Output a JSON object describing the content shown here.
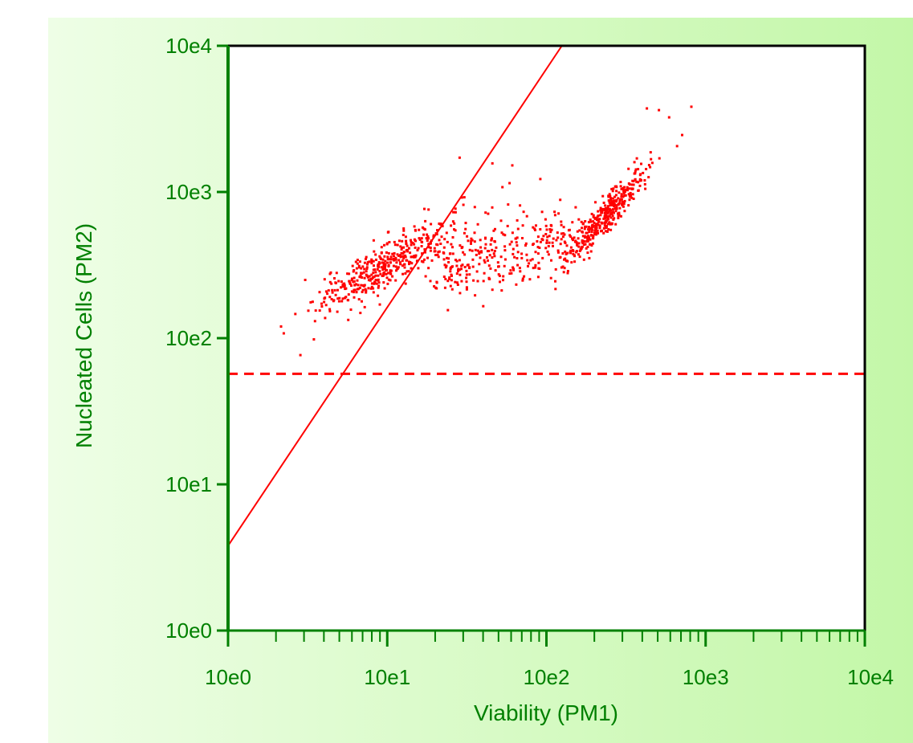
{
  "chart_data": {
    "type": "scatter",
    "title": "",
    "xlabel": "Viability (PM1)",
    "ylabel": "Nucleated Cells (PM2)",
    "x_scale": "log",
    "y_scale": "log",
    "xlim": [
      1,
      10000
    ],
    "ylim": [
      1,
      10000
    ],
    "x_ticks": [
      {
        "value": 1,
        "label": "10e0"
      },
      {
        "value": 10,
        "label": "10e1"
      },
      {
        "value": 100,
        "label": "10e2"
      },
      {
        "value": 1000,
        "label": "10e3"
      },
      {
        "value": 10000,
        "label": "10e4"
      }
    ],
    "y_ticks": [
      {
        "value": 1,
        "label": "10e0"
      },
      {
        "value": 10,
        "label": "10e1"
      },
      {
        "value": 100,
        "label": "10e2"
      },
      {
        "value": 1000,
        "label": "10e3"
      },
      {
        "value": 10000,
        "label": "10e4"
      }
    ],
    "grid": false,
    "point_color": "#ff0000",
    "axis_text_color": "#008000",
    "background_color": "#d6f8c4",
    "cluster_1": {
      "center": [
        10,
        330
      ],
      "count": 420
    },
    "cluster_2": {
      "center": [
        230,
        700
      ],
      "count": 360
    },
    "bridge": {
      "from": [
        20,
        300
      ],
      "to": [
        150,
        520
      ],
      "count": 300
    },
    "annotations": [
      {
        "type": "diagonal-line",
        "from": [
          1,
          3.8
        ],
        "to": [
          125,
          10000
        ],
        "style": "solid",
        "color": "#ff0000"
      },
      {
        "type": "horizontal-line",
        "y": 57,
        "style": "dashed",
        "color": "#ff0000"
      }
    ]
  }
}
